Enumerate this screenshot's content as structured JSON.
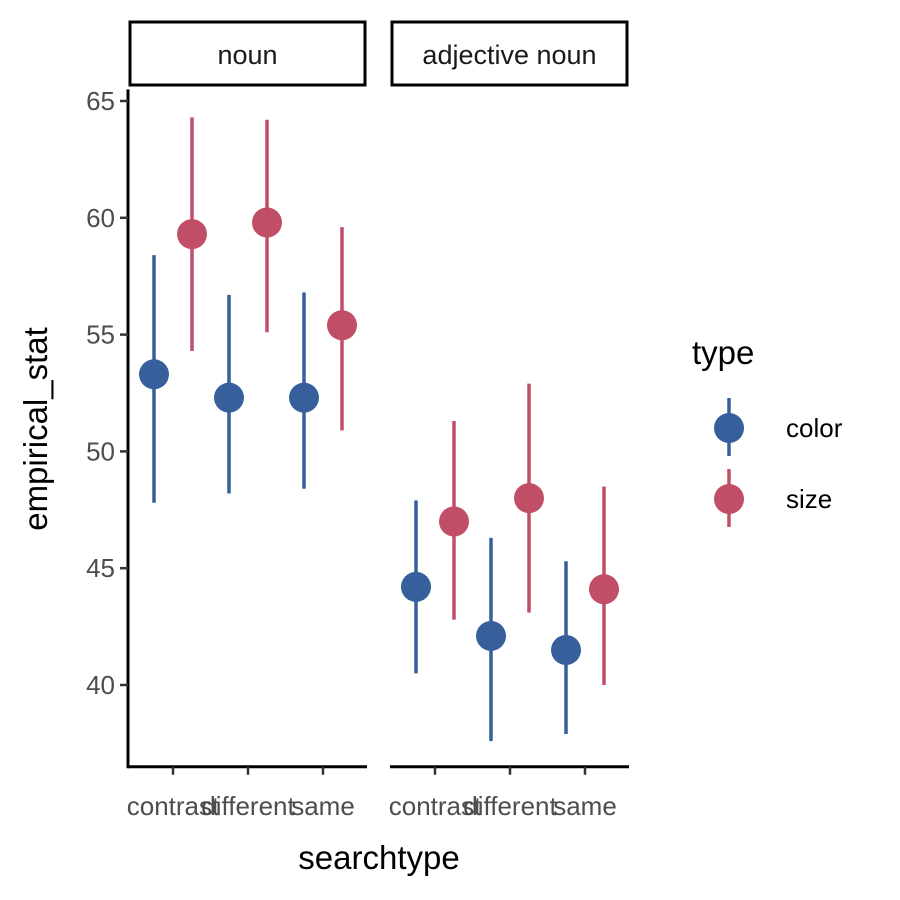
{
  "chart_data": {
    "type": "scatter",
    "xlabel": "searchtype",
    "ylabel": "empirical_stat",
    "ylim": [
      36.5,
      65.5
    ],
    "yticks": [
      40,
      45,
      50,
      55,
      60,
      65
    ],
    "grid": false,
    "categories": [
      "contrast",
      "different",
      "same"
    ],
    "panels": [
      {
        "label": "noun",
        "series": [
          {
            "name": "color",
            "values": [
              53.3,
              52.3,
              52.3
            ],
            "lower": [
              47.8,
              48.2,
              48.4
            ],
            "upper": [
              58.4,
              56.7,
              56.8
            ]
          },
          {
            "name": "size",
            "values": [
              59.3,
              59.8,
              55.4
            ],
            "lower": [
              54.3,
              55.1,
              50.9
            ],
            "upper": [
              64.3,
              64.2,
              59.6
            ]
          }
        ]
      },
      {
        "label": "adjective noun",
        "series": [
          {
            "name": "color",
            "values": [
              44.2,
              42.1,
              41.5
            ],
            "lower": [
              40.5,
              37.6,
              37.9
            ],
            "upper": [
              47.9,
              46.3,
              45.3
            ]
          },
          {
            "name": "size",
            "values": [
              47.0,
              48.0,
              44.1
            ],
            "lower": [
              42.8,
              43.1,
              40.0
            ],
            "upper": [
              51.3,
              52.9,
              48.5
            ]
          }
        ]
      }
    ],
    "legend": {
      "title": "type",
      "placement": "right",
      "entries": [
        {
          "name": "color",
          "color": "#365F9C"
        },
        {
          "name": "size",
          "color": "#C04E66"
        }
      ]
    }
  }
}
